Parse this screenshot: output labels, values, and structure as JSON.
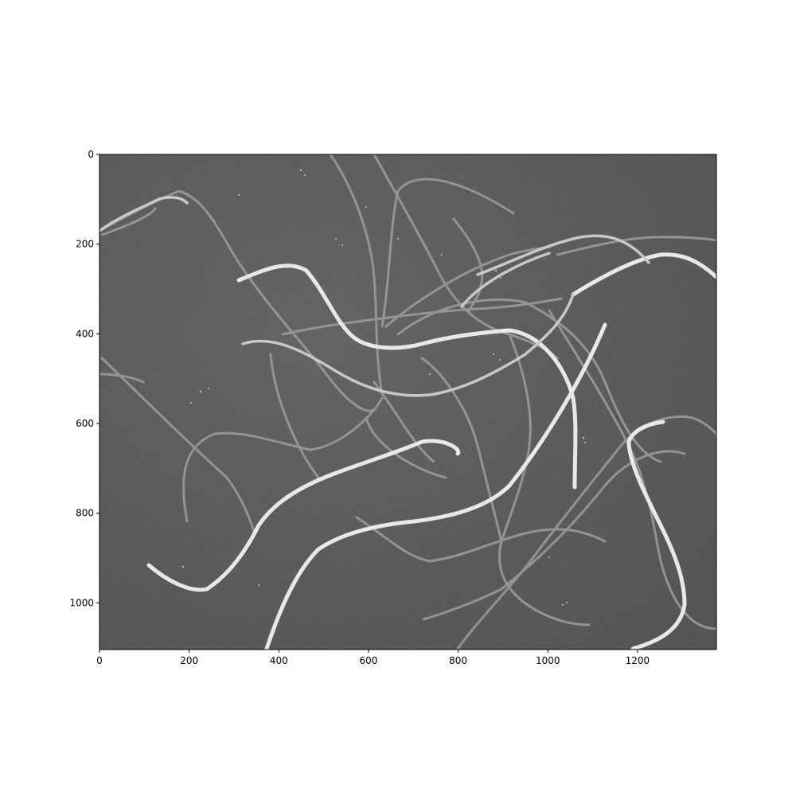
{
  "figure": {
    "background": "#ffffff",
    "image_background": "#4b4b4b",
    "fiber_color": "#e6e6e6",
    "axis_color": "#000000"
  },
  "axes": {
    "x_ticks": [
      {
        "value": 0,
        "label": "0"
      },
      {
        "value": 200,
        "label": "200"
      },
      {
        "value": 400,
        "label": "400"
      },
      {
        "value": 600,
        "label": "600"
      },
      {
        "value": 800,
        "label": "800"
      },
      {
        "value": 1000,
        "label": "1000"
      },
      {
        "value": 1200,
        "label": "1200"
      }
    ],
    "y_ticks": [
      {
        "value": 0,
        "label": "0"
      },
      {
        "value": 200,
        "label": "200"
      },
      {
        "value": 400,
        "label": "400"
      },
      {
        "value": 600,
        "label": "600"
      },
      {
        "value": 800,
        "label": "800"
      },
      {
        "value": 1000,
        "label": "1000"
      }
    ],
    "x_range": [
      0,
      1376
    ],
    "y_range": [
      0,
      1104
    ],
    "y_inverted": true
  },
  "image": {
    "subject": "grayscale micrograph of curved fibers on a dark textured background"
  }
}
